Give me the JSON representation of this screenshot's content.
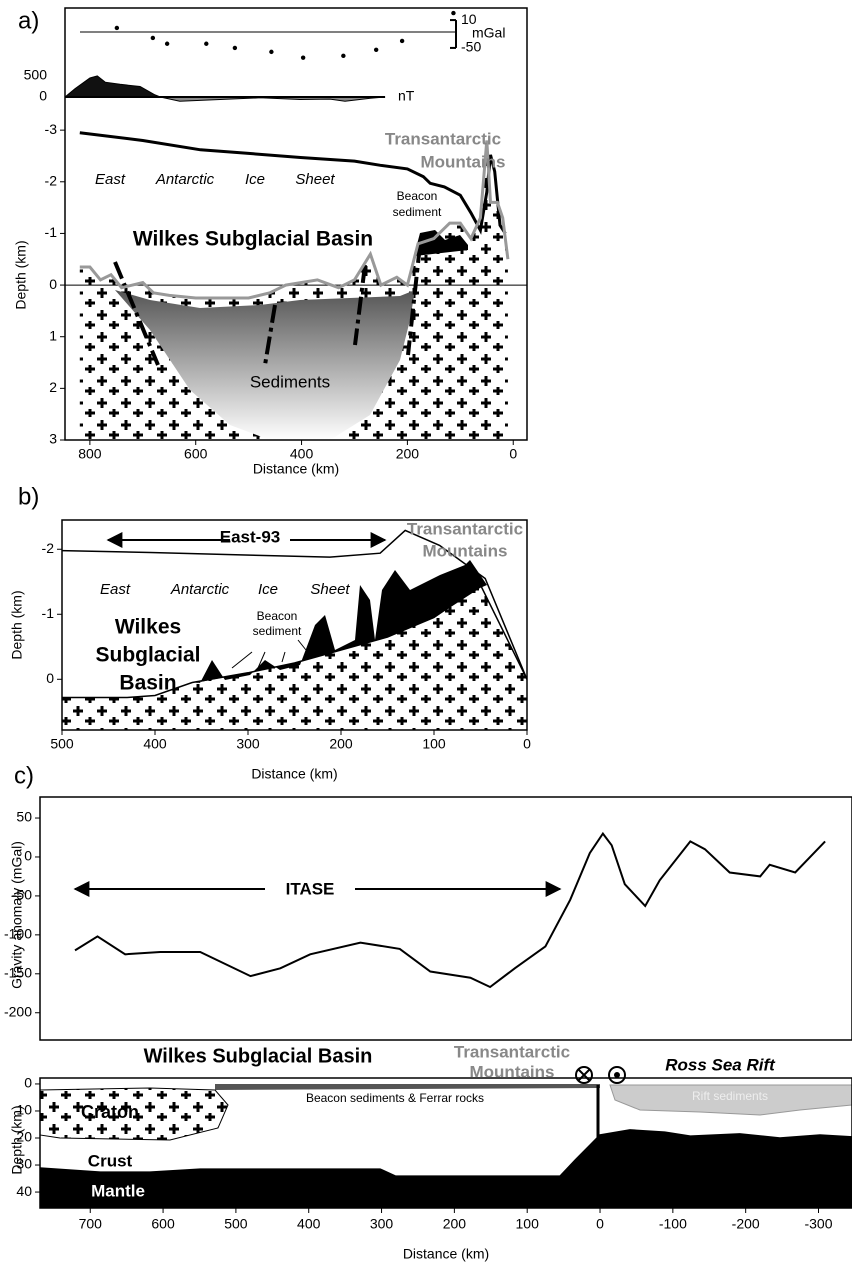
{
  "chart_data": [
    {
      "type": "section",
      "panel_label": "a)",
      "xlabel": "Distance (km)",
      "ylabel": "Depth (km)",
      "xlim": [
        847,
        -26
      ],
      "xticks": [
        800,
        600,
        400,
        200,
        0
      ],
      "ylim": [
        3,
        -3.39
      ],
      "yticks": [
        -3,
        -2,
        -1,
        0,
        1,
        2,
        3
      ],
      "series": [
        {
          "color": "#000000",
          "x": [
            819,
            700,
            591,
            500,
            402,
            300,
            251,
            200,
            170,
            157,
            130,
            100,
            80,
            62,
            50,
            43,
            35,
            25,
            15
          ],
          "values": [
            -2.95,
            -2.8,
            -2.62,
            -2.55,
            -2.47,
            -2.4,
            -2.32,
            -2.25,
            -2.1,
            -1.97,
            -1.9,
            -1.74,
            -1.4,
            -1.06,
            -1.8,
            -2.52,
            -2.2,
            -1.16,
            -1.0
          ]
        },
        {
          "color": "#999999",
          "x": [
            819,
            800,
            780,
            760,
            740,
            700,
            680,
            650,
            600,
            550,
            500,
            460,
            430,
            400,
            370,
            330,
            300,
            270,
            250,
            220,
            200,
            180,
            150,
            120,
            100,
            80,
            62,
            50,
            43,
            30,
            20,
            10
          ],
          "values": [
            -0.35,
            -0.35,
            -0.1,
            -0.2,
            0.05,
            -0.05,
            0.15,
            0.2,
            0.25,
            0.25,
            0.25,
            0.15,
            0.0,
            -0.05,
            -0.1,
            0.05,
            -0.1,
            -0.6,
            0.0,
            -0.15,
            0.0,
            -0.8,
            -0.9,
            -1.2,
            -1.2,
            -0.9,
            -1.3,
            -2.8,
            -1.6,
            -1.6,
            -1.3,
            -0.5
          ]
        }
      ],
      "gravity": {
        "color": "#000000",
        "unit": "mGal",
        "ylim": [
          -76,
          36
        ],
        "yticks": [
          10,
          -50
        ],
        "x": [
          749,
          681,
          654,
          580,
          526,
          457,
          397,
          321,
          259,
          210,
          113
        ],
        "values": [
          -7,
          -28.5,
          -41,
          -41,
          -50,
          -58.5,
          -71,
          -67,
          -54,
          -35,
          25
        ]
      },
      "magnetics": {
        "colors": [
          "#111111",
          "#888888"
        ],
        "unit": "nT",
        "ylim": [
          -190,
          830
        ],
        "yticks": [
          500,
          0
        ],
        "x": [
          847,
          828,
          800,
          786,
          771,
          743,
          705,
          677,
          667,
          630,
          554,
          478,
          403,
          346,
          318,
          270,
          242
        ],
        "values": [
          0,
          200,
          450,
          500,
          350,
          300,
          250,
          50,
          0,
          -100,
          -60,
          -20,
          -60,
          -50,
          -100,
          -30,
          0
        ]
      },
      "annotations": [
        "East",
        "Antarctic",
        "Ice",
        "Sheet",
        "Transantarctic",
        "Mountains",
        "Beacon",
        "sediment",
        "Wilkes Subglacial Basin",
        "Sediments"
      ]
    },
    {
      "type": "section",
      "panel_label": "b)",
      "xlabel": "Distance (km)",
      "ylabel": "Depth (km)",
      "xlim": [
        500,
        0
      ],
      "xticks": [
        500,
        400,
        300,
        200,
        100,
        0
      ],
      "ylim": [
        0.78,
        -2.45
      ],
      "yticks": [
        -2,
        -1,
        0
      ],
      "series": [
        {
          "color": "#000000",
          "x": [
            500,
            405,
            298,
            212,
            158,
            131,
            94,
            45,
            0
          ],
          "values": [
            -1.98,
            -1.95,
            -1.91,
            -1.88,
            -1.94,
            -2.29,
            -2.06,
            -1.55,
            0
          ]
        },
        {
          "color": "#000000",
          "x": [
            500,
            430,
            400,
            360,
            300,
            250,
            200,
            150,
            100,
            50,
            0
          ],
          "values": [
            0.28,
            0.28,
            0.25,
            0.05,
            -0.1,
            -0.25,
            -0.45,
            -0.65,
            -0.95,
            -1.45,
            0
          ]
        }
      ],
      "annotations": [
        "East-93",
        "Transantarctic",
        "Mountains",
        "East",
        "Antarctic",
        "Ice",
        "Sheet",
        "Wilkes",
        "Subglacial",
        "Basin",
        "Beacon",
        "sediment"
      ]
    },
    {
      "type": "line",
      "panel_label": "c)",
      "ylabel": "Gravity anomaly (mGal)",
      "xlim": [
        769,
        -346
      ],
      "ylim": [
        -235,
        77
      ],
      "yticks": [
        50,
        0,
        -50,
        -100,
        -150,
        -200
      ],
      "series": [
        {
          "color": "#000000",
          "x": [
            721,
            690,
            652,
            604,
            549,
            480,
            439,
            398,
            329,
            275,
            233,
            178,
            151,
            117,
            75,
            41,
            14,
            -4,
            -16,
            -34,
            -62,
            -82,
            -124,
            -144,
            -178,
            -220,
            -233,
            -268,
            -309
          ],
          "values": [
            -120,
            -102,
            -125,
            -122,
            -122,
            -153,
            -143,
            -125,
            -110,
            -118,
            -147,
            -155,
            -167,
            -143,
            -115,
            -55,
            5,
            30,
            15,
            -35,
            -63,
            -30,
            20,
            10,
            -20,
            -25,
            -10,
            -20,
            20
          ]
        }
      ],
      "annotations": [
        "ITASE"
      ]
    },
    {
      "type": "section",
      "xlabel": "Distance (km)",
      "ylabel": "Depth (km)",
      "xlim": [
        769,
        -346
      ],
      "xticks": [
        700,
        600,
        500,
        400,
        300,
        200,
        100,
        0,
        -100,
        -200,
        -300
      ],
      "ylim": [
        45.9,
        -2.2
      ],
      "yticks": [
        0,
        10,
        20,
        30,
        40
      ],
      "series": [
        {
          "color": "#000000",
          "x": [
            769,
            686,
            618,
            549,
            412,
            302,
            281,
            178,
            55,
            34,
            0,
            -41,
            -89,
            -124,
            -192,
            -247,
            -302,
            -346
          ],
          "values": [
            31.1,
            32.6,
            32.6,
            31.5,
            31.5,
            31.5,
            34.1,
            34.1,
            34.1,
            28.1,
            18.9,
            17.0,
            17.8,
            19.3,
            18.5,
            20,
            18.9,
            19.6
          ]
        }
      ],
      "annotations": [
        "Wilkes Subglacial Basin",
        "Transantarctic",
        "Mountains",
        "Ross Sea Rift",
        "Beacon sediments & Ferrar rocks",
        "Rift sediments",
        "Craton",
        "Crust",
        "Mantle"
      ]
    }
  ]
}
